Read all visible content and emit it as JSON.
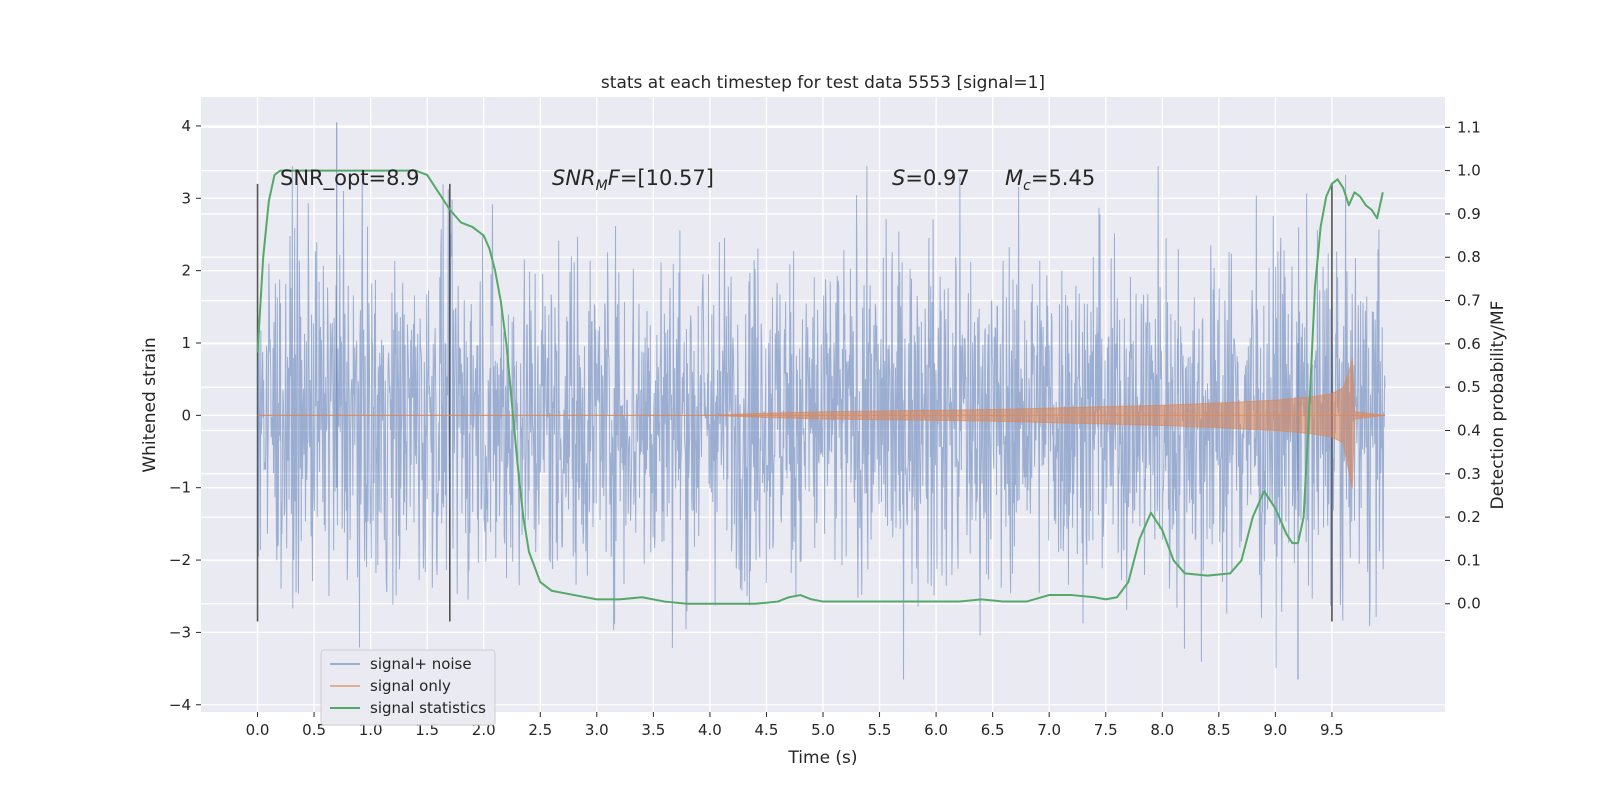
{
  "chart_data": {
    "type": "line",
    "title": "stats at each timestep for test data 5553 [signal=1]",
    "xlabel": "Time (s)",
    "ylabel": "Whitened strain",
    "y2label": "Detection probability/MF",
    "xlim": [
      -0.5,
      10.5
    ],
    "ylim": [
      -4.1,
      4.4
    ],
    "y2lim": [
      -0.25,
      1.17
    ],
    "x_ticks": [
      0.0,
      0.5,
      1.0,
      1.5,
      2.0,
      2.5,
      3.0,
      3.5,
      4.0,
      4.5,
      5.0,
      5.5,
      6.0,
      6.5,
      7.0,
      7.5,
      8.0,
      8.5,
      9.0,
      9.5
    ],
    "x_tick_labels": [
      "0.0",
      "0.5",
      "1.0",
      "1.5",
      "2.0",
      "2.5",
      "3.0",
      "3.5",
      "4.0",
      "4.5",
      "5.0",
      "5.5",
      "6.0",
      "6.5",
      "7.0",
      "7.5",
      "8.0",
      "8.5",
      "9.0",
      "9.5"
    ],
    "y_ticks": [
      -4,
      -3,
      -2,
      -1,
      0,
      1,
      2,
      3,
      4
    ],
    "y_tick_labels": [
      "−4",
      "−3",
      "−2",
      "−1",
      "0",
      "1",
      "2",
      "3",
      "4"
    ],
    "y2_ticks": [
      0.0,
      0.1,
      0.2,
      0.3,
      0.4,
      0.5,
      0.6,
      0.7,
      0.8,
      0.9,
      1.0,
      1.1
    ],
    "y2_tick_labels": [
      "0.0",
      "0.1",
      "0.2",
      "0.3",
      "0.4",
      "0.5",
      "0.6",
      "0.7",
      "0.8",
      "0.9",
      "1.0",
      "1.1"
    ],
    "grid": true,
    "legend_position": "bottom-left",
    "annotations": {
      "snr_opt": "SNR_opt=8.9",
      "snr_mf": "SNRMF=[10.57]",
      "s_value": "S=0.97",
      "mc_value": "Mc=5.45"
    },
    "vlines": [
      0.0,
      1.7,
      9.5
    ],
    "series": [
      {
        "name": "signal+ noise",
        "color": "#4c72b0",
        "axis": "left",
        "time_range": [
          0.0,
          9.97
        ],
        "typical_range": [
          -1.4,
          1.4
        ],
        "peak_max": 4.05,
        "peak_min": -3.65
      },
      {
        "name": "signal only",
        "color": "#dd8452",
        "axis": "left",
        "x": [
          0.0,
          4.0,
          4.5,
          5.0,
          5.5,
          6.0,
          6.5,
          7.0,
          7.5,
          8.0,
          8.5,
          9.0,
          9.3,
          9.5,
          9.6,
          9.65,
          9.68,
          9.7,
          9.97
        ],
        "envelope": [
          0.0,
          0.0,
          0.03,
          0.05,
          0.06,
          0.07,
          0.08,
          0.1,
          0.12,
          0.14,
          0.17,
          0.21,
          0.25,
          0.3,
          0.38,
          0.6,
          0.78,
          0.05,
          0.0
        ]
      },
      {
        "name": "signal statistics",
        "color": "#55a868",
        "axis": "right",
        "x": [
          0.0,
          0.05,
          0.1,
          0.15,
          0.2,
          0.3,
          0.5,
          0.8,
          1.0,
          1.2,
          1.3,
          1.4,
          1.5,
          1.6,
          1.7,
          1.8,
          1.9,
          2.0,
          2.05,
          2.1,
          2.15,
          2.2,
          2.25,
          2.3,
          2.35,
          2.4,
          2.5,
          2.6,
          2.8,
          3.0,
          3.2,
          3.4,
          3.6,
          3.8,
          4.0,
          4.2,
          4.4,
          4.6,
          4.7,
          4.8,
          4.9,
          5.0,
          5.2,
          5.4,
          5.6,
          5.8,
          6.0,
          6.2,
          6.4,
          6.6,
          6.8,
          7.0,
          7.2,
          7.4,
          7.5,
          7.6,
          7.7,
          7.8,
          7.9,
          8.0,
          8.1,
          8.2,
          8.4,
          8.6,
          8.7,
          8.8,
          8.9,
          9.0,
          9.1,
          9.15,
          9.2,
          9.25,
          9.3,
          9.35,
          9.4,
          9.45,
          9.5,
          9.55,
          9.6,
          9.65,
          9.7,
          9.75,
          9.8,
          9.85,
          9.9,
          9.95
        ],
        "values": [
          0.58,
          0.8,
          0.93,
          0.99,
          1.0,
          1.0,
          1.0,
          1.0,
          1.0,
          1.0,
          1.0,
          1.0,
          0.99,
          0.95,
          0.91,
          0.88,
          0.87,
          0.85,
          0.82,
          0.77,
          0.7,
          0.6,
          0.46,
          0.32,
          0.2,
          0.12,
          0.05,
          0.03,
          0.02,
          0.01,
          0.01,
          0.015,
          0.005,
          0.0,
          0.0,
          0.0,
          0.0,
          0.005,
          0.015,
          0.02,
          0.01,
          0.005,
          0.005,
          0.005,
          0.005,
          0.005,
          0.005,
          0.005,
          0.01,
          0.005,
          0.005,
          0.02,
          0.02,
          0.015,
          0.01,
          0.015,
          0.05,
          0.15,
          0.21,
          0.17,
          0.1,
          0.07,
          0.065,
          0.07,
          0.1,
          0.2,
          0.26,
          0.22,
          0.16,
          0.14,
          0.14,
          0.2,
          0.45,
          0.73,
          0.87,
          0.94,
          0.97,
          0.98,
          0.96,
          0.92,
          0.95,
          0.94,
          0.92,
          0.91,
          0.89,
          0.95
        ]
      }
    ]
  }
}
